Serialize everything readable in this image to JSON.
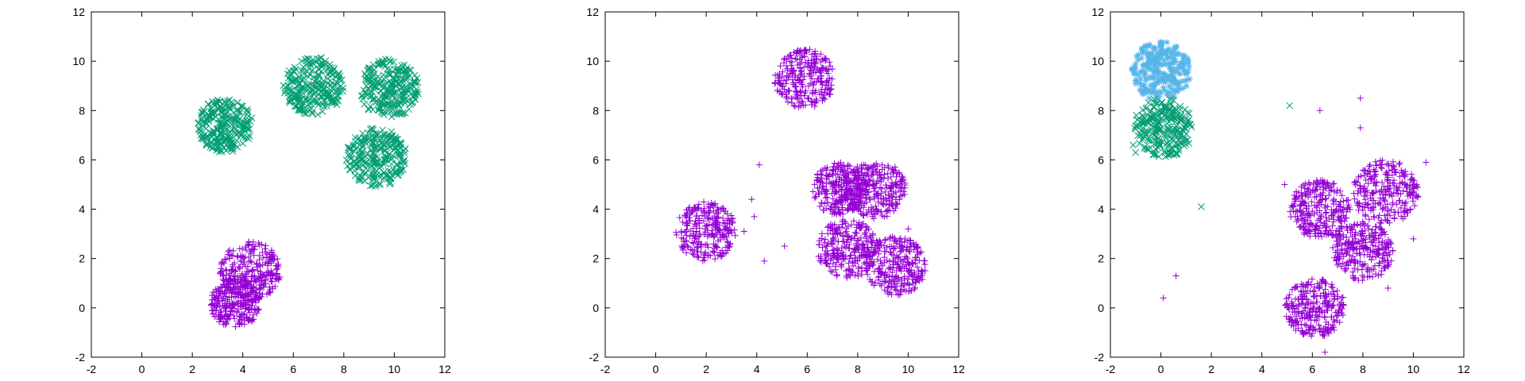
{
  "chart_data": [
    {
      "type": "scatter",
      "xlim": [
        -2,
        12
      ],
      "ylim": [
        -2,
        12
      ],
      "xticks": [
        "-2",
        "0",
        "2",
        "4",
        "6",
        "8",
        "10",
        "12"
      ],
      "yticks": [
        "-2",
        "0",
        "2",
        "4",
        "6",
        "8",
        "10",
        "12"
      ],
      "grid": false,
      "series": [
        {
          "marker": "x",
          "color": "#009e73",
          "clusters": [
            {
              "center": [
                3.3,
                7.4
              ],
              "radius": 1.1
            },
            {
              "center": [
                6.8,
                9.0
              ],
              "radius": 1.2
            },
            {
              "center": [
                9.8,
                8.9
              ],
              "radius": 1.2
            },
            {
              "center": [
                9.3,
                6.1
              ],
              "radius": 1.2
            }
          ]
        },
        {
          "marker": "+",
          "color": "#9400d3",
          "clusters": [
            {
              "center": [
                4.3,
                1.5
              ],
              "radius": 1.2
            },
            {
              "center": [
                3.7,
                0.2
              ],
              "radius": 1.0
            }
          ]
        }
      ]
    },
    {
      "type": "scatter",
      "xlim": [
        -2,
        12
      ],
      "ylim": [
        -2,
        12
      ],
      "xticks": [
        "-2",
        "0",
        "2",
        "4",
        "6",
        "8",
        "10",
        "12"
      ],
      "yticks": [
        "-2",
        "0",
        "2",
        "4",
        "6",
        "8",
        "10",
        "12"
      ],
      "grid": false,
      "series": [
        {
          "marker": "+",
          "color": "#9400d3",
          "clusters": [
            {
              "center": [
                5.9,
                9.3
              ],
              "radius": 1.2
            },
            {
              "center": [
                2.0,
                3.1
              ],
              "radius": 1.2
            },
            {
              "center": [
                7.3,
                4.8
              ],
              "radius": 1.1
            },
            {
              "center": [
                8.7,
                4.8
              ],
              "radius": 1.2
            },
            {
              "center": [
                7.6,
                2.4
              ],
              "radius": 1.2
            },
            {
              "center": [
                9.5,
                1.7
              ],
              "radius": 1.2
            }
          ],
          "outliers": [
            [
              4.1,
              5.8
            ],
            [
              3.8,
              4.4
            ],
            [
              3.9,
              3.7
            ],
            [
              3.5,
              3.1
            ],
            [
              5.1,
              2.5
            ],
            [
              4.3,
              1.9
            ],
            [
              10.0,
              3.2
            ]
          ]
        }
      ]
    },
    {
      "type": "scatter",
      "xlim": [
        -2,
        12
      ],
      "ylim": [
        -2,
        12
      ],
      "xticks": [
        "-2",
        "0",
        "2",
        "4",
        "6",
        "8",
        "10",
        "12"
      ],
      "yticks": [
        "-2",
        "0",
        "2",
        "4",
        "6",
        "8",
        "10",
        "12"
      ],
      "grid": false,
      "series": [
        {
          "marker": "*",
          "color": "#56b4e9",
          "clusters": [
            {
              "center": [
                0.0,
                9.6
              ],
              "radius": 1.2
            }
          ]
        },
        {
          "marker": "x",
          "color": "#009e73",
          "clusters": [
            {
              "center": [
                0.1,
                7.3
              ],
              "radius": 1.2
            }
          ],
          "outliers": [
            [
              -1.1,
              6.6
            ],
            [
              -1.0,
              6.3
            ],
            [
              5.1,
              8.2
            ],
            [
              1.6,
              4.1
            ]
          ]
        },
        {
          "marker": "+",
          "color": "#9400d3",
          "clusters": [
            {
              "center": [
                6.3,
                4.0
              ],
              "radius": 1.2
            },
            {
              "center": [
                8.9,
                4.7
              ],
              "radius": 1.3
            },
            {
              "center": [
                8.0,
                2.3
              ],
              "radius": 1.2
            },
            {
              "center": [
                6.1,
                0.0
              ],
              "radius": 1.2
            }
          ],
          "outliers": [
            [
              7.9,
              8.5
            ],
            [
              6.3,
              8.0
            ],
            [
              7.9,
              7.3
            ],
            [
              0.6,
              1.3
            ],
            [
              0.1,
              0.4
            ],
            [
              4.9,
              5.0
            ],
            [
              10.5,
              5.9
            ],
            [
              10.0,
              2.8
            ],
            [
              9.0,
              0.8
            ],
            [
              6.5,
              -1.8
            ]
          ]
        }
      ]
    }
  ]
}
